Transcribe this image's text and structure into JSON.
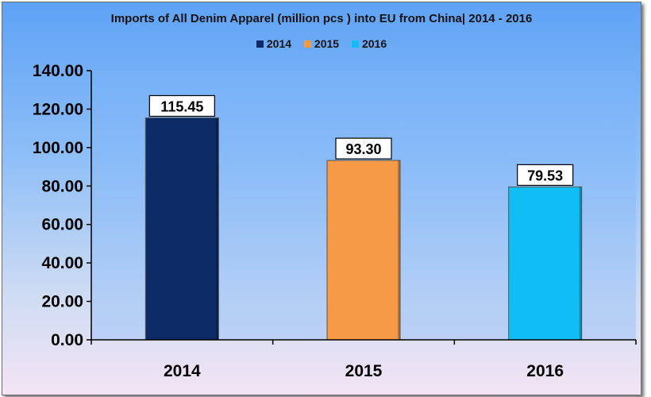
{
  "chart_data": {
    "type": "bar",
    "title": "Imports of All Denim Apparel (million pcs ) into EU from China| 2014 - 2016",
    "categories": [
      "2014",
      "2015",
      "2016"
    ],
    "series": [
      {
        "name": "2014",
        "values": [
          115.45,
          null,
          null
        ],
        "color": "#0b2a66"
      },
      {
        "name": "2015",
        "values": [
          null,
          93.3,
          null
        ],
        "color": "#f79a48"
      },
      {
        "name": "2016",
        "values": [
          null,
          null,
          79.53
        ],
        "color": "#10bdf5"
      }
    ],
    "values": [
      115.45,
      93.3,
      79.53
    ],
    "data_labels": [
      "115.45",
      "93.30",
      "79.53"
    ],
    "colors": [
      "#0b2a66",
      "#f79a48",
      "#10bdf5"
    ],
    "ylim": [
      0,
      140
    ],
    "y_ticks": [
      "0.00",
      "20.00",
      "40.00",
      "60.00",
      "80.00",
      "100.00",
      "120.00",
      "140.00"
    ],
    "y_tick_values": [
      0,
      20,
      40,
      60,
      80,
      100,
      120,
      140
    ],
    "xlabel": "",
    "ylabel": "",
    "grid": false,
    "legend_position": "top-center"
  },
  "legend": {
    "items": [
      {
        "label": "2014",
        "color": "#0b2a66"
      },
      {
        "label": "2015",
        "color": "#f79a48"
      },
      {
        "label": "2016",
        "color": "#10bdf5"
      }
    ]
  },
  "colors": {
    "plot_area": "#7db4f8",
    "frame_border": "#6d6d6d"
  }
}
